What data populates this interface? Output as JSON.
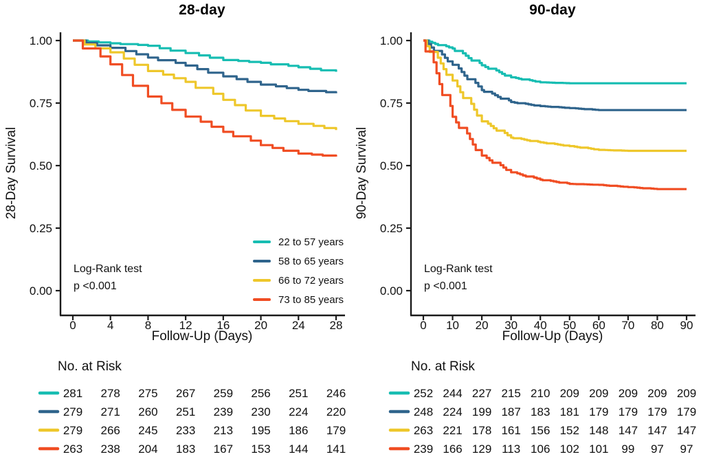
{
  "figure": {
    "background": "#ffffff",
    "axis_color": "#1a1a1a",
    "text_color": "#111111"
  },
  "chart_data": [
    {
      "type": "line",
      "subtype": "kaplan-meier-step",
      "title": "28-day",
      "xlabel": "Follow-Up (Days)",
      "ylabel": "28-Day Survival",
      "xlim": [
        0,
        28
      ],
      "ylim": [
        0.0,
        1.0
      ],
      "x_ticks": [
        0,
        4,
        8,
        12,
        16,
        20,
        24,
        28
      ],
      "y_tick_labels": [
        "1.00",
        "0.75",
        "0.50",
        "0.25",
        "0.00"
      ],
      "y_tick_values": [
        1.0,
        0.75,
        0.5,
        0.25,
        0.0
      ],
      "grid": false,
      "legend_position": "inside-lower-right",
      "annotation": {
        "line1": "Log-Rank test",
        "line2": "p <0.001"
      },
      "risk_table_header": "No. at Risk",
      "series": [
        {
          "name": "22 to 57 years",
          "color": "#17BDB2",
          "x": [
            0,
            4,
            8,
            12,
            16,
            20,
            24,
            28
          ],
          "survival": [
            1.0,
            0.989,
            0.979,
            0.95,
            0.922,
            0.911,
            0.893,
            0.875
          ],
          "at_risk": [
            281,
            278,
            275,
            267,
            259,
            256,
            251,
            246
          ]
        },
        {
          "name": "58 to 65 years",
          "color": "#2F648C",
          "x": [
            0,
            4,
            8,
            12,
            16,
            20,
            24,
            28
          ],
          "survival": [
            1.0,
            0.971,
            0.932,
            0.9,
            0.857,
            0.824,
            0.803,
            0.789
          ],
          "at_risk": [
            279,
            271,
            260,
            251,
            239,
            230,
            224,
            220
          ]
        },
        {
          "name": "66 to 72 years",
          "color": "#EEC72B",
          "x": [
            0,
            4,
            8,
            12,
            16,
            20,
            24,
            28
          ],
          "survival": [
            1.0,
            0.953,
            0.878,
            0.835,
            0.763,
            0.699,
            0.667,
            0.642
          ],
          "at_risk": [
            279,
            266,
            245,
            233,
            213,
            195,
            186,
            179
          ]
        },
        {
          "name": "73 to 85 years",
          "color": "#F04D23",
          "x": [
            0,
            4,
            8,
            12,
            16,
            20,
            24,
            28
          ],
          "survival": [
            1.0,
            0.905,
            0.776,
            0.696,
            0.635,
            0.582,
            0.548,
            0.536
          ],
          "at_risk": [
            263,
            238,
            204,
            183,
            167,
            153,
            144,
            141
          ]
        }
      ]
    },
    {
      "type": "line",
      "subtype": "kaplan-meier-step",
      "title": "90-day",
      "xlabel": "Follow-Up (Days)",
      "ylabel": "90-Day Survival",
      "xlim": [
        0,
        90
      ],
      "ylim": [
        0.0,
        1.0
      ],
      "x_ticks": [
        0,
        10,
        20,
        30,
        40,
        50,
        60,
        70,
        80,
        90
      ],
      "y_tick_labels": [
        "1.00",
        "0.75",
        "0.50",
        "0.25",
        "0.00"
      ],
      "y_tick_values": [
        1.0,
        0.75,
        0.5,
        0.25,
        0.0
      ],
      "grid": false,
      "legend_position": "none",
      "annotation": {
        "line1": "Log-Rank test",
        "line2": "p <0.001"
      },
      "risk_table_header": "No. at Risk",
      "series": [
        {
          "name": "22 to 57 years",
          "color": "#17BDB2",
          "x": [
            0,
            10,
            20,
            30,
            40,
            50,
            60,
            70,
            80,
            90
          ],
          "survival": [
            1.0,
            0.968,
            0.901,
            0.853,
            0.833,
            0.829,
            0.829,
            0.829,
            0.829,
            0.829
          ],
          "at_risk": [
            252,
            244,
            227,
            215,
            210,
            209,
            209,
            209,
            209,
            209
          ]
        },
        {
          "name": "58 to 65 years",
          "color": "#2F648C",
          "x": [
            0,
            10,
            20,
            30,
            40,
            50,
            60,
            70,
            80,
            90
          ],
          "survival": [
            1.0,
            0.903,
            0.802,
            0.754,
            0.738,
            0.73,
            0.722,
            0.722,
            0.722,
            0.722
          ],
          "at_risk": [
            248,
            224,
            199,
            187,
            183,
            181,
            179,
            179,
            179,
            179
          ]
        },
        {
          "name": "66 to 72 years",
          "color": "#EEC72B",
          "x": [
            0,
            10,
            20,
            30,
            40,
            50,
            60,
            70,
            80,
            90
          ],
          "survival": [
            1.0,
            0.84,
            0.677,
            0.612,
            0.593,
            0.578,
            0.563,
            0.559,
            0.559,
            0.559
          ],
          "at_risk": [
            263,
            221,
            178,
            161,
            156,
            152,
            148,
            147,
            147,
            147
          ]
        },
        {
          "name": "73 to 85 years",
          "color": "#F04D23",
          "x": [
            0,
            10,
            20,
            30,
            40,
            50,
            60,
            70,
            80,
            90
          ],
          "survival": [
            1.0,
            0.695,
            0.54,
            0.473,
            0.444,
            0.427,
            0.423,
            0.414,
            0.406,
            0.406
          ],
          "at_risk": [
            239,
            166,
            129,
            113,
            106,
            102,
            101,
            99,
            97,
            97
          ]
        }
      ]
    }
  ]
}
